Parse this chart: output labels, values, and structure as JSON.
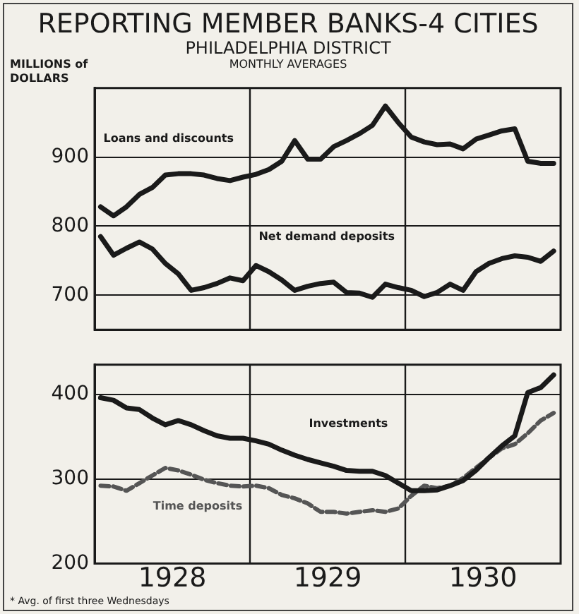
{
  "chart_data": [
    {
      "type": "line",
      "title": "REPORTING MEMBER BANKS-4 CITIES",
      "subtitle": "PHILADELPHIA DISTRICT",
      "ylabel": "MILLIONS of DOLLARS",
      "annotations": [
        "MONTHLY AVERAGES"
      ],
      "x": [
        "1928-01-15",
        "1928-02-15",
        "1928-03-15",
        "1928-04-15",
        "1928-05-15",
        "1928-06-15",
        "1928-07-15",
        "1928-08-15",
        "1928-09-15",
        "1928-10-15",
        "1928-11-15",
        "1928-12-15",
        "1929-01-15",
        "1929-02-15",
        "1929-03-15",
        "1929-04-15",
        "1929-05-15",
        "1929-06-15",
        "1929-07-15",
        "1929-08-15",
        "1929-09-15",
        "1929-10-15",
        "1929-11-15",
        "1929-12-15",
        "1930-01-15",
        "1930-02-15",
        "1930-03-15",
        "1930-04-15",
        "1930-05-15",
        "1930-06-15",
        "1930-07-15",
        "1930-08-15",
        "1930-09-15",
        "1930-10-15",
        "1930-11-15",
        "1930-12-15"
      ],
      "series": [
        {
          "name": "Loans and discounts",
          "color": "#1a1a1a",
          "values": [
            828,
            815,
            828,
            846,
            856,
            874,
            876,
            876,
            874,
            869,
            866,
            871,
            875,
            882,
            894,
            924,
            897,
            897,
            915,
            924,
            934,
            946,
            974,
            950,
            929,
            922,
            918,
            919,
            912,
            926,
            932,
            938,
            941,
            894,
            891,
            891
          ]
        },
        {
          "name": "Net demand deposits",
          "color": "#1a1a1a",
          "values": [
            785,
            758,
            768,
            777,
            767,
            746,
            731,
            707,
            711,
            717,
            725,
            721,
            743,
            734,
            722,
            707,
            713,
            717,
            719,
            704,
            703,
            697,
            716,
            711,
            707,
            698,
            704,
            716,
            707,
            734,
            746,
            753,
            757,
            755,
            749,
            764
          ]
        }
      ],
      "xlim": [
        "1928-01",
        "1931-01"
      ],
      "ylim": [
        650,
        1000
      ],
      "yticks": [
        700,
        800,
        900
      ],
      "grid": "y",
      "tick_labels": "y",
      "ref_lines": [
        {
          "axis": "x",
          "value": "1929-01",
          "color": "#1a1a1a"
        },
        {
          "axis": "x",
          "value": "1930-01",
          "color": "#1a1a1a"
        }
      ]
    },
    {
      "type": "line",
      "annotations": [
        "* Avg. of first three Wednesdays"
      ],
      "x": [
        "1928-01-15",
        "1928-02-15",
        "1928-03-15",
        "1928-04-15",
        "1928-05-15",
        "1928-06-15",
        "1928-07-15",
        "1928-08-15",
        "1928-09-15",
        "1928-10-15",
        "1928-11-15",
        "1928-12-15",
        "1929-01-15",
        "1929-02-15",
        "1929-03-15",
        "1929-04-15",
        "1929-05-15",
        "1929-06-15",
        "1929-07-15",
        "1929-08-15",
        "1929-09-15",
        "1929-10-15",
        "1929-11-15",
        "1929-12-15",
        "1930-01-15",
        "1930-02-15",
        "1930-03-15",
        "1930-04-15",
        "1930-05-15",
        "1930-06-15",
        "1930-07-15",
        "1930-08-15",
        "1930-09-15",
        "1930-10-15",
        "1930-11-15",
        "1930-12-15"
      ],
      "series": [
        {
          "name": "Investments",
          "color": "#1a1a1a",
          "values": [
            396,
            393,
            384,
            382,
            372,
            364,
            369,
            364,
            357,
            351,
            348,
            348,
            345,
            341,
            334,
            328,
            323,
            319,
            315,
            310,
            309,
            309,
            304,
            295,
            286,
            286,
            287,
            292,
            298,
            310,
            325,
            339,
            351,
            402,
            408,
            423
          ]
        },
        {
          "name": "Time deposits",
          "color": "#555555",
          "line_style": "dashed",
          "values": [
            292,
            291,
            286,
            295,
            304,
            313,
            310,
            305,
            299,
            295,
            292,
            291,
            292,
            289,
            281,
            277,
            271,
            261,
            261,
            259,
            261,
            263,
            261,
            265,
            280,
            292,
            289,
            292,
            301,
            313,
            325,
            336,
            341,
            354,
            369,
            378
          ]
        }
      ],
      "xlim": [
        "1928-01",
        "1931-01"
      ],
      "xticks": [
        {
          "value": "1928-07",
          "label": "1928"
        },
        {
          "value": "1929-07",
          "label": "1929"
        },
        {
          "value": "1930-07",
          "label": "1930"
        }
      ],
      "ylim": [
        200,
        435
      ],
      "yticks": [
        200,
        300,
        400
      ],
      "grid": "y",
      "ref_lines": [
        {
          "axis": "x",
          "value": "1929-01",
          "color": "#1a1a1a"
        },
        {
          "axis": "x",
          "value": "1930-01",
          "color": "#1a1a1a"
        }
      ]
    }
  ]
}
